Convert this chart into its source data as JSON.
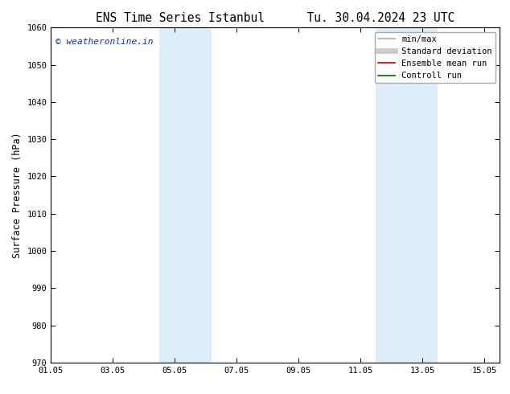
{
  "title": "ENS Time Series Istanbul",
  "title2": "Tu. 30.04.2024 23 UTC",
  "ylabel": "Surface Pressure (hPa)",
  "ylim": [
    970,
    1060
  ],
  "yticks": [
    970,
    980,
    990,
    1000,
    1010,
    1020,
    1030,
    1040,
    1050,
    1060
  ],
  "xlim_num": [
    0,
    14.5
  ],
  "xtick_labels": [
    "01.05",
    "03.05",
    "05.05",
    "07.05",
    "09.05",
    "11.05",
    "13.05",
    "15.05"
  ],
  "xtick_positions": [
    0,
    2,
    4,
    6,
    8,
    10,
    12,
    14
  ],
  "blue_bands": [
    {
      "xmin": 3.5,
      "xmax": 5.2
    },
    {
      "xmin": 10.5,
      "xmax": 12.5
    }
  ],
  "band_color": "#ddeef8",
  "copyright_text": "© weatheronline.in",
  "copyright_color": "#0033cc",
  "legend_entries": [
    {
      "label": "min/max",
      "color": "#aaaaaa",
      "lw": 1.2,
      "style": "solid"
    },
    {
      "label": "Standard deviation",
      "color": "#cccccc",
      "lw": 5,
      "style": "solid"
    },
    {
      "label": "Ensemble mean run",
      "color": "#cc0000",
      "lw": 1.2,
      "style": "solid"
    },
    {
      "label": "Controll run",
      "color": "#006600",
      "lw": 1.2,
      "style": "solid"
    }
  ],
  "bg_color": "#ffffff",
  "spine_color": "#000000",
  "title_fontsize": 10.5,
  "axis_label_fontsize": 8.5,
  "tick_fontsize": 7.5,
  "legend_fontsize": 7.5,
  "copyright_fontsize": 8,
  "fig_width": 6.34,
  "fig_height": 4.9,
  "dpi": 100
}
